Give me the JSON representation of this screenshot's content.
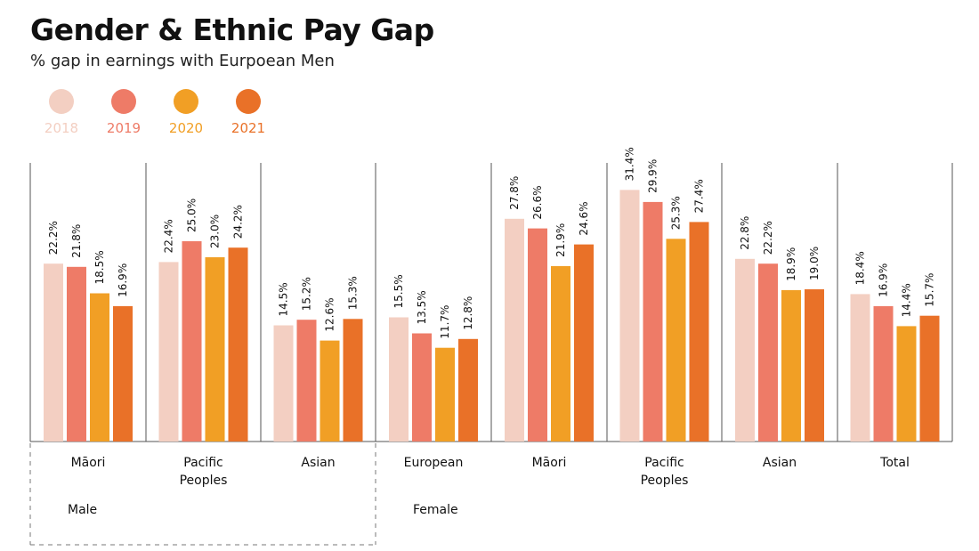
{
  "title": "Gender & Ethnic Pay Gap",
  "subtitle": "% gap in earnings with Eurpoean Men",
  "legend": [
    {
      "label": "2018",
      "color": "#f3cfc2"
    },
    {
      "label": "2019",
      "color": "#ee7b67"
    },
    {
      "label": "2020",
      "color": "#f19f25"
    },
    {
      "label": "2021",
      "color": "#e97128"
    }
  ],
  "chart_data": {
    "type": "bar",
    "title": "Gender & Ethnic Pay Gap",
    "subtitle": "% gap in earnings with Eurpoean Men",
    "xlabel": "",
    "ylabel": "",
    "ylim": [
      0,
      35
    ],
    "grid": false,
    "legend_position": "top-left",
    "categories": [
      [
        "Māori"
      ],
      [
        "Pacific",
        "Peoples"
      ],
      [
        "Asian"
      ],
      [
        "European"
      ],
      [
        "Māori"
      ],
      [
        "Pacific",
        "Peoples"
      ],
      [
        "Asian"
      ],
      [
        "Total"
      ]
    ],
    "groups": [
      {
        "label": "Male",
        "start": 0,
        "end": 2
      },
      {
        "label": "Female",
        "start": 3,
        "end": 6
      }
    ],
    "series": [
      {
        "name": "2018",
        "color": "#f3cfc2",
        "values": [
          22.2,
          22.4,
          14.5,
          15.5,
          27.8,
          31.4,
          22.8,
          18.4
        ],
        "labels": [
          "22.2%",
          "22.4%",
          "14.5%",
          "15.5%",
          "27.8%",
          "31.4%",
          "22.8%",
          "18.4%"
        ]
      },
      {
        "name": "2019",
        "color": "#ee7b67",
        "values": [
          21.8,
          25.0,
          15.2,
          13.5,
          26.6,
          29.9,
          22.2,
          16.9
        ],
        "labels": [
          "21.8%",
          "25.0%",
          "15.2%",
          "13.5%",
          "26.6%",
          "29.9%",
          "22.2%",
          "16.9%"
        ]
      },
      {
        "name": "2020",
        "color": "#f19f25",
        "values": [
          18.5,
          23.0,
          12.6,
          11.7,
          21.9,
          25.3,
          18.9,
          14.4
        ],
        "labels": [
          "18.5%",
          "23.0%",
          "12.6%",
          "11.7%",
          "21.9%",
          "25.3%",
          "18.9%",
          "14.4%"
        ]
      },
      {
        "name": "2021",
        "color": "#e97128",
        "values": [
          16.9,
          24.2,
          15.3,
          12.8,
          24.6,
          27.4,
          19.0,
          15.7
        ],
        "labels": [
          "16.9%",
          "24.2%",
          "15.3%",
          "12.8%",
          "24.6%",
          "27.4%",
          "19.0%",
          "15.7%"
        ]
      }
    ]
  }
}
